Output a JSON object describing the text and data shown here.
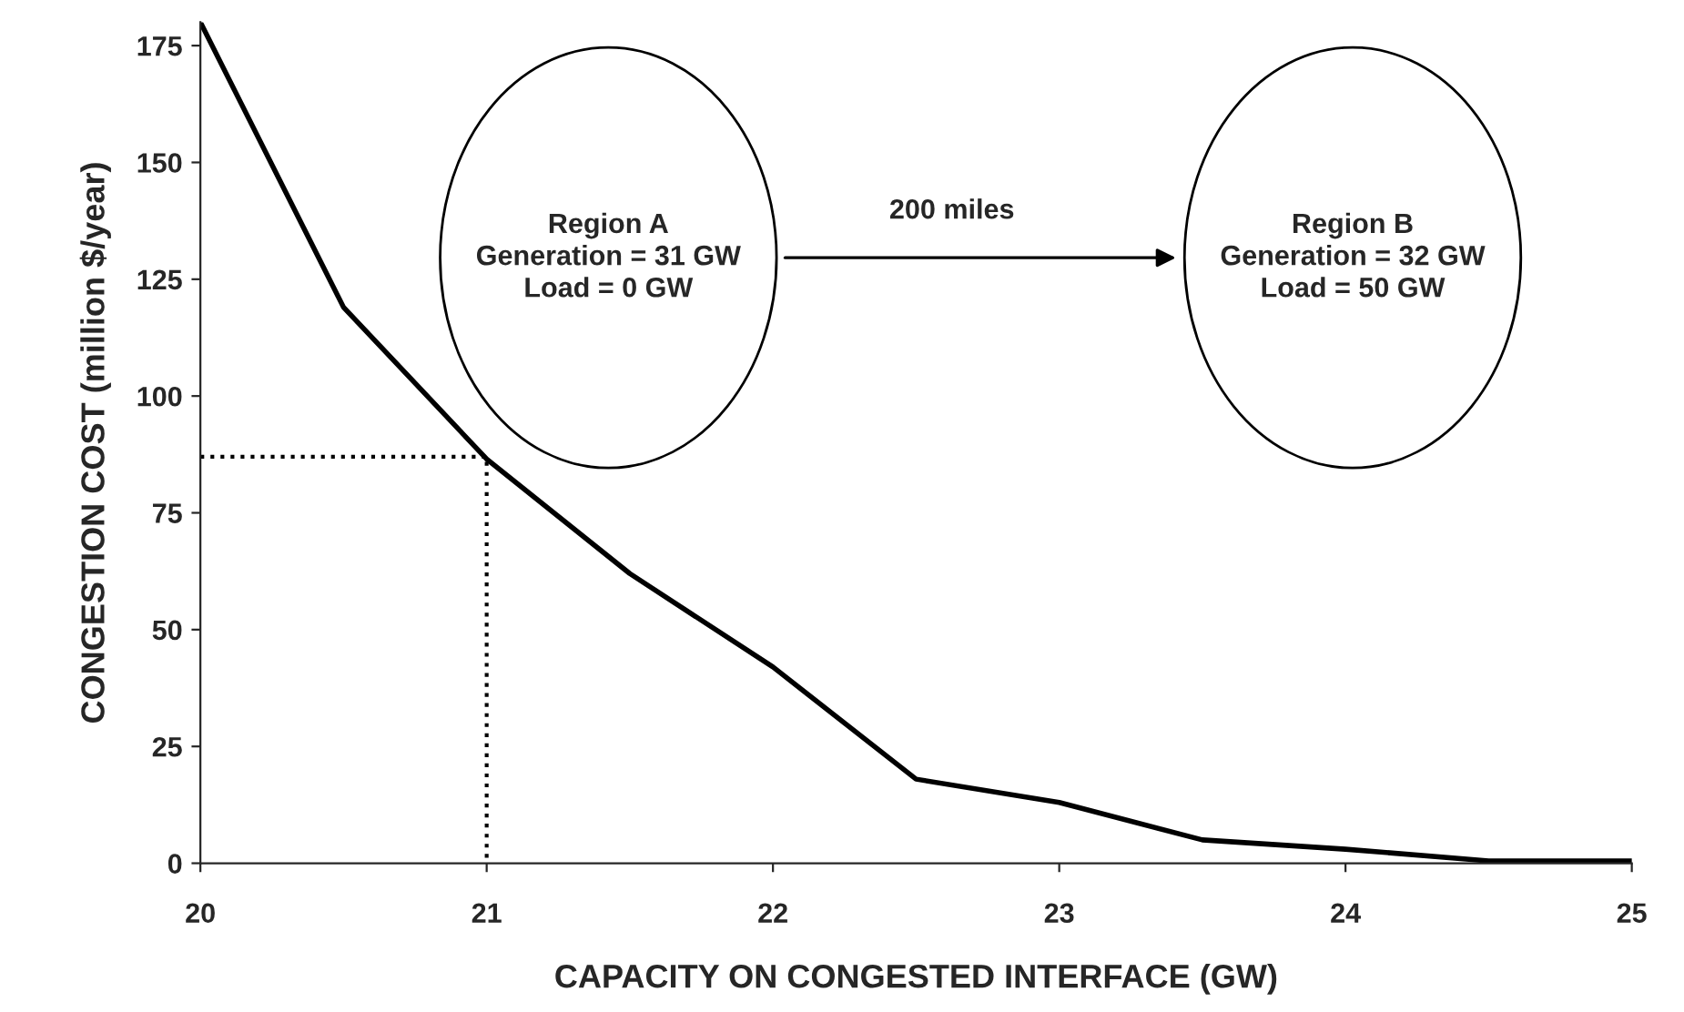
{
  "chart_data": {
    "type": "line",
    "xlabel": "CAPACITY ON CONGESTED INTERFACE (GW)",
    "ylabel": "CONGESTION COST (million $/year)",
    "xlim": [
      20,
      25
    ],
    "xticks": [
      20,
      21,
      22,
      23,
      24,
      25
    ],
    "ylim": [
      0,
      180
    ],
    "yticks": [
      0,
      25,
      50,
      75,
      100,
      125,
      150,
      175
    ],
    "grid": false,
    "legend": false,
    "series": [
      {
        "color": "#000000",
        "x": [
          20,
          20.5,
          21,
          21.5,
          22,
          22.5,
          23,
          23.5,
          24,
          24.5,
          25
        ],
        "values": [
          180,
          119,
          86.5,
          62,
          42,
          18,
          13,
          5,
          3,
          0.5,
          0.5
        ],
        "line_style": "solid"
      },
      {
        "color": "#000000",
        "x": [
          20,
          21,
          21
        ],
        "values": [
          87,
          87,
          0
        ],
        "line_style": "dotted"
      }
    ],
    "annotations": [
      "Region A\nGeneration = 31 GW\nLoad = 0 GW",
      "200 miles",
      "Region B\nGeneration = 32 GW\nLoad = 50 GW"
    ]
  }
}
